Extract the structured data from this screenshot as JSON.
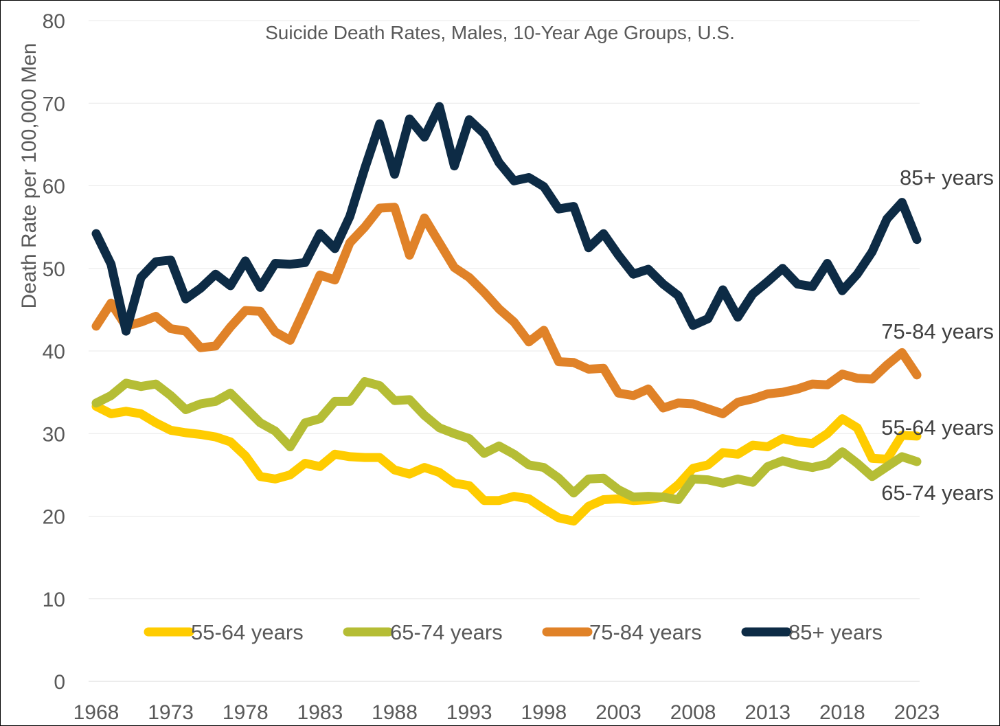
{
  "chart_data": {
    "type": "line",
    "title": "Suicide Death Rates, Males, 10-Year Age Groups, U.S.",
    "xlabel": "",
    "ylabel": "Death Rate per 100,000 Men",
    "xlim": [
      1968,
      2023
    ],
    "ylim": [
      0,
      80
    ],
    "yticks": [
      0,
      10,
      20,
      30,
      40,
      50,
      60,
      70,
      80
    ],
    "xticks": [
      1968,
      1973,
      1978,
      1983,
      1988,
      1993,
      1998,
      2003,
      2008,
      2013,
      2018,
      2023
    ],
    "grid": true,
    "legend_position": "bottom-inside",
    "x": [
      1968,
      1969,
      1970,
      1971,
      1972,
      1973,
      1974,
      1975,
      1976,
      1977,
      1978,
      1979,
      1980,
      1981,
      1982,
      1983,
      1984,
      1985,
      1986,
      1987,
      1988,
      1989,
      1990,
      1991,
      1992,
      1993,
      1994,
      1995,
      1996,
      1997,
      1998,
      1999,
      2000,
      2001,
      2002,
      2003,
      2004,
      2005,
      2006,
      2007,
      2008,
      2009,
      2010,
      2011,
      2012,
      2013,
      2014,
      2015,
      2016,
      2017,
      2018,
      2019,
      2020,
      2021,
      2022,
      2023
    ],
    "series": [
      {
        "name": "55-64 years",
        "color": "#ffcc00",
        "values": [
          33.3,
          32.4,
          32.7,
          32.4,
          31.3,
          30.4,
          30.1,
          29.9,
          29.6,
          29.0,
          27.3,
          24.8,
          24.5,
          25.0,
          26.4,
          26.0,
          27.5,
          27.2,
          27.1,
          27.1,
          25.6,
          25.1,
          25.9,
          25.3,
          24.0,
          23.7,
          21.9,
          21.9,
          22.4,
          22.1,
          20.9,
          19.8,
          19.4,
          21.2,
          22.0,
          22.1,
          21.9,
          22.0,
          22.3,
          23.8,
          25.8,
          26.2,
          27.7,
          27.5,
          28.6,
          28.4,
          29.4,
          29.0,
          28.8,
          30.0,
          31.8,
          30.7,
          27.0,
          26.9,
          29.8,
          29.7
        ]
      },
      {
        "name": "65-74 years",
        "color": "#b5bd35",
        "values": [
          33.7,
          34.6,
          36.1,
          35.7,
          36.0,
          34.6,
          32.9,
          33.6,
          33.9,
          34.9,
          33.1,
          31.3,
          30.3,
          28.4,
          31.3,
          31.8,
          33.9,
          33.9,
          36.3,
          35.8,
          34.0,
          34.1,
          32.2,
          30.7,
          30.0,
          29.4,
          27.6,
          28.5,
          27.5,
          26.2,
          25.9,
          24.6,
          22.8,
          24.5,
          24.6,
          23.2,
          22.3,
          22.4,
          22.3,
          22.0,
          24.5,
          24.4,
          24.0,
          24.5,
          24.1,
          26.0,
          26.7,
          26.2,
          25.9,
          26.3,
          27.8,
          26.4,
          24.8,
          26.0,
          27.2,
          26.6
        ]
      },
      {
        "name": "75-84 years",
        "color": "#e08228",
        "values": [
          43.0,
          45.8,
          43.0,
          43.5,
          44.2,
          42.7,
          42.4,
          40.4,
          40.6,
          42.9,
          44.9,
          44.8,
          42.3,
          41.3,
          45.2,
          49.2,
          48.6,
          53.1,
          55.0,
          57.3,
          57.4,
          51.6,
          56.1,
          53.1,
          50.1,
          48.9,
          47.1,
          45.1,
          43.5,
          41.1,
          42.5,
          38.7,
          38.6,
          37.8,
          37.9,
          34.9,
          34.6,
          35.4,
          33.1,
          33.7,
          33.6,
          33.0,
          32.4,
          33.8,
          34.2,
          34.8,
          35.0,
          35.4,
          36.0,
          35.9,
          37.2,
          36.7,
          36.6,
          38.3,
          39.8,
          37.1
        ]
      },
      {
        "name": "85+ years",
        "color": "#0d2b45",
        "values": [
          54.2,
          50.5,
          42.4,
          48.9,
          50.8,
          51.0,
          46.3,
          47.6,
          49.3,
          47.9,
          50.9,
          47.7,
          50.6,
          50.5,
          50.7,
          54.2,
          52.4,
          56.3,
          62.1,
          67.5,
          61.4,
          68.1,
          65.9,
          69.6,
          62.4,
          68.0,
          66.3,
          62.8,
          60.6,
          61.0,
          59.9,
          57.2,
          57.5,
          52.5,
          54.2,
          51.6,
          49.3,
          49.9,
          48.1,
          46.7,
          43.1,
          43.9,
          47.4,
          44.1,
          46.9,
          48.4,
          50.0,
          48.1,
          47.8,
          50.6,
          47.3,
          49.3,
          52.0,
          56.0,
          58.0,
          53.5
        ]
      }
    ],
    "end_labels": [
      "85+ years",
      "75-84 years",
      "55-64 years",
      "65-74 years"
    ]
  }
}
